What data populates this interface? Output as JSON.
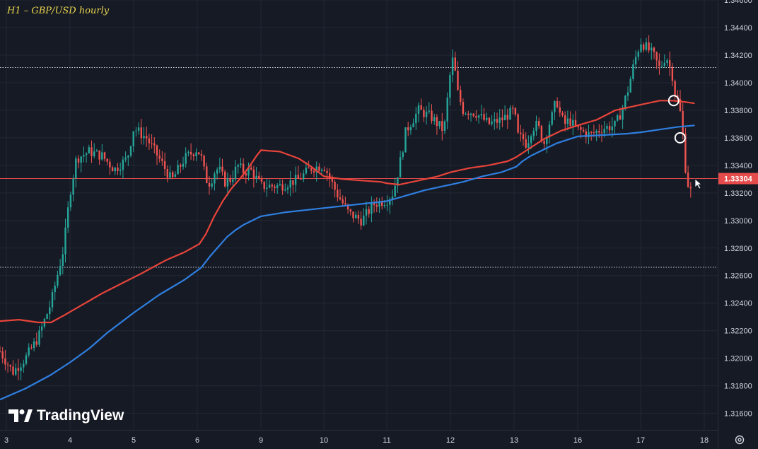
{
  "title": "H1 – GBP/USD hourly",
  "logo_text": "TradingView",
  "price_label": "1.33304",
  "settings_icon": "settings-gear-icon",
  "cursor_icon": "mouse-pointer-icon",
  "colors": {
    "background": "#161a25",
    "up": "#26a69a",
    "down": "#ef5350",
    "ma_red": "#e8443a",
    "ma_blue": "#2f7fe0",
    "price_line": "#e64b4b",
    "title": "#e8d44d"
  },
  "chart_data": {
    "type": "candlestick",
    "ylim": [
      1.3148,
      1.346
    ],
    "y_ticks": [
      "1.34600",
      "1.34400",
      "1.34200",
      "1.34000",
      "1.33800",
      "1.33600",
      "1.33400",
      "1.33200",
      "1.33000",
      "1.32800",
      "1.32600",
      "1.32400",
      "1.32200",
      "1.32000",
      "1.31800",
      "1.31600"
    ],
    "x_ticks": [
      "3",
      "4",
      "5",
      "6",
      "9",
      "10",
      "11",
      "12",
      "13",
      "16",
      "17",
      "18"
    ],
    "last_price": 1.33304,
    "horizontal_levels": [
      1.3411,
      1.3266
    ],
    "circle_markers": [
      {
        "x": 17.52,
        "y": 1.3387
      },
      {
        "x": 17.62,
        "y": 1.336
      }
    ],
    "series": [
      {
        "kind": "ma",
        "color": "red",
        "x": [
          2.9,
          3.2,
          3.5,
          3.7,
          3.9,
          4.2,
          4.5,
          4.8,
          5.1,
          5.5,
          5.8,
          6.1,
          6.4,
          6.8,
          7.2,
          7.6,
          8.0,
          8.4,
          8.8,
          9.0,
          9.3,
          9.6,
          9.8,
          10.0,
          10.3,
          10.6,
          10.9,
          11.0,
          11.2,
          11.5,
          11.8,
          12.0,
          12.3,
          12.6,
          12.9,
          13.1,
          13.4,
          13.8,
          14.0,
          14.4,
          14.8,
          15.2,
          15.6,
          16.0,
          16.3,
          16.6,
          16.8,
          17.0,
          17.3,
          17.5,
          17.7,
          17.85
        ],
        "y": [
          1.3227,
          1.3228,
          1.3226,
          1.3226,
          1.3231,
          1.3239,
          1.3247,
          1.3254,
          1.3261,
          1.3271,
          1.3277,
          1.3283,
          1.329,
          1.3303,
          1.3314,
          1.3323,
          1.333,
          1.3338,
          1.3347,
          1.3351,
          1.335,
          1.3345,
          1.3339,
          1.3332,
          1.333,
          1.3329,
          1.3328,
          1.3327,
          1.3326,
          1.3329,
          1.3332,
          1.3335,
          1.3338,
          1.334,
          1.3343,
          1.3346,
          1.3349,
          1.3353,
          1.3355,
          1.3359,
          1.3362,
          1.3365,
          1.3367,
          1.3369,
          1.3373,
          1.338,
          1.3382,
          1.3384,
          1.3387,
          1.3387,
          1.3386,
          1.3385
        ]
      },
      {
        "kind": "ma",
        "color": "blue",
        "x": [
          2.9,
          3.3,
          3.7,
          4.0,
          4.3,
          4.6,
          5.0,
          5.4,
          5.8,
          6.2,
          6.6,
          7.0,
          7.4,
          7.8,
          8.2,
          8.6,
          9.0,
          9.4,
          9.8,
          10.2,
          10.6,
          11.0,
          11.3,
          11.6,
          11.9,
          12.2,
          12.5,
          12.8,
          13.1,
          13.4,
          13.8,
          14.2,
          14.6,
          15.0,
          15.4,
          15.8,
          16.0,
          16.4,
          16.8,
          17.0,
          17.3,
          17.6,
          17.85
        ],
        "y": [
          1.317,
          1.3178,
          1.3188,
          1.3197,
          1.3207,
          1.3219,
          1.3233,
          1.3246,
          1.3257,
          1.3266,
          1.3274,
          1.3281,
          1.3288,
          1.3293,
          1.3297,
          1.33,
          1.3303,
          1.3306,
          1.3308,
          1.331,
          1.3312,
          1.3314,
          1.3318,
          1.3322,
          1.3325,
          1.3328,
          1.3332,
          1.3335,
          1.3339,
          1.3343,
          1.3347,
          1.335,
          1.3353,
          1.3356,
          1.3358,
          1.336,
          1.3361,
          1.3362,
          1.3363,
          1.3364,
          1.3366,
          1.3368,
          1.3369
        ]
      },
      {
        "kind": "price_path",
        "x": [
          2.9,
          3.1,
          3.3,
          3.5,
          3.7,
          3.9,
          4.0,
          4.1,
          4.3,
          4.5,
          4.7,
          4.9,
          5.0,
          5.2,
          5.4,
          5.6,
          5.8,
          6.0,
          6.2,
          6.4,
          6.6,
          6.8,
          7.0,
          7.3,
          7.6,
          7.9,
          8.2,
          8.5,
          8.8,
          9.0,
          9.3,
          9.6,
          9.8,
          10.0,
          10.2,
          10.4,
          10.6,
          10.8,
          11.0,
          11.1,
          11.2,
          11.3,
          11.5,
          11.7,
          11.9,
          12.0,
          12.05,
          12.1,
          12.2,
          12.4,
          12.6,
          12.8,
          13.0,
          13.2,
          13.4,
          13.6,
          13.8,
          14.0,
          14.2,
          14.4,
          14.6,
          14.8,
          15.0,
          15.2,
          15.4,
          15.6,
          15.8,
          16.0,
          16.2,
          16.4,
          16.6,
          16.7,
          16.8,
          16.9,
          17.0,
          17.1,
          17.2,
          17.3,
          17.4,
          17.5,
          17.55,
          17.6,
          17.65,
          17.7,
          17.75,
          17.8
        ],
        "y": [
          1.3205,
          1.319,
          1.32,
          1.3215,
          1.324,
          1.328,
          1.332,
          1.3345,
          1.335,
          1.3347,
          1.3337,
          1.3345,
          1.3367,
          1.336,
          1.3345,
          1.3329,
          1.3345,
          1.3352,
          1.3345,
          1.333,
          1.3327,
          1.3335,
          1.3338,
          1.3328,
          1.333,
          1.334,
          1.3335,
          1.3337,
          1.333,
          1.3325,
          1.3325,
          1.333,
          1.3338,
          1.334,
          1.332,
          1.3305,
          1.33,
          1.3312,
          1.3315,
          1.332,
          1.334,
          1.3365,
          1.338,
          1.3375,
          1.3365,
          1.3408,
          1.342,
          1.3395,
          1.338,
          1.3378,
          1.337,
          1.3373,
          1.338,
          1.336,
          1.336,
          1.3355,
          1.3365,
          1.337,
          1.3366,
          1.3355,
          1.3368,
          1.3376,
          1.3388,
          1.3375,
          1.337,
          1.3373,
          1.3369,
          1.3366,
          1.3362,
          1.3367,
          1.3369,
          1.338,
          1.3395,
          1.3415,
          1.343,
          1.3425,
          1.342,
          1.341,
          1.342,
          1.3405,
          1.339,
          1.3385,
          1.337,
          1.334,
          1.3325,
          1.332
        ]
      }
    ]
  }
}
